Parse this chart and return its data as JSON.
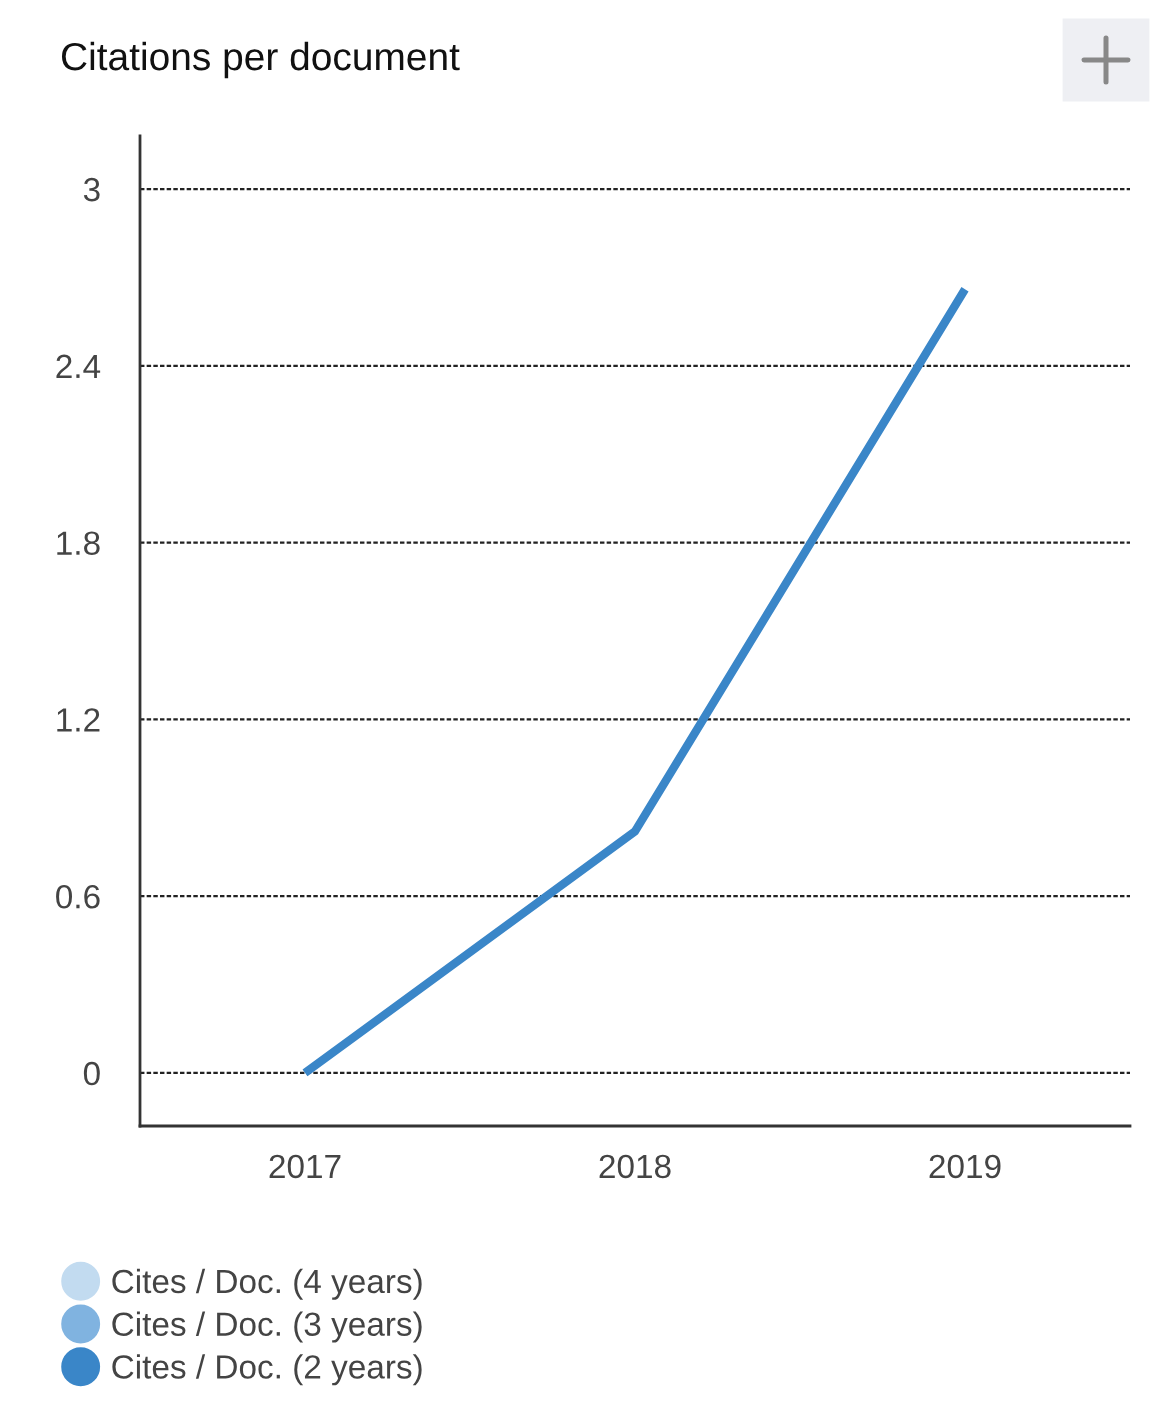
{
  "chart_data": {
    "type": "line",
    "title": "Citations per document",
    "categories": [
      "2017",
      "2018",
      "2019"
    ],
    "series": [
      {
        "name": "Cites / Doc. (4 years)",
        "color": "#c2dbf0",
        "values": [
          null,
          null,
          null
        ]
      },
      {
        "name": "Cites / Doc. (3 years)",
        "color": "#80b3e0",
        "values": [
          null,
          null,
          null
        ]
      },
      {
        "name": "Cites / Doc. (2 years)",
        "color": "#3a86c8",
        "values": [
          0,
          0.82,
          2.66
        ]
      }
    ],
    "ylim": [
      -0.18,
      3.18
    ],
    "yticks": [
      0,
      0.6,
      1.2,
      1.8,
      2.4,
      3
    ],
    "grid": "y",
    "legend": "bottom left",
    "marker": "none",
    "line_style": "solid"
  }
}
